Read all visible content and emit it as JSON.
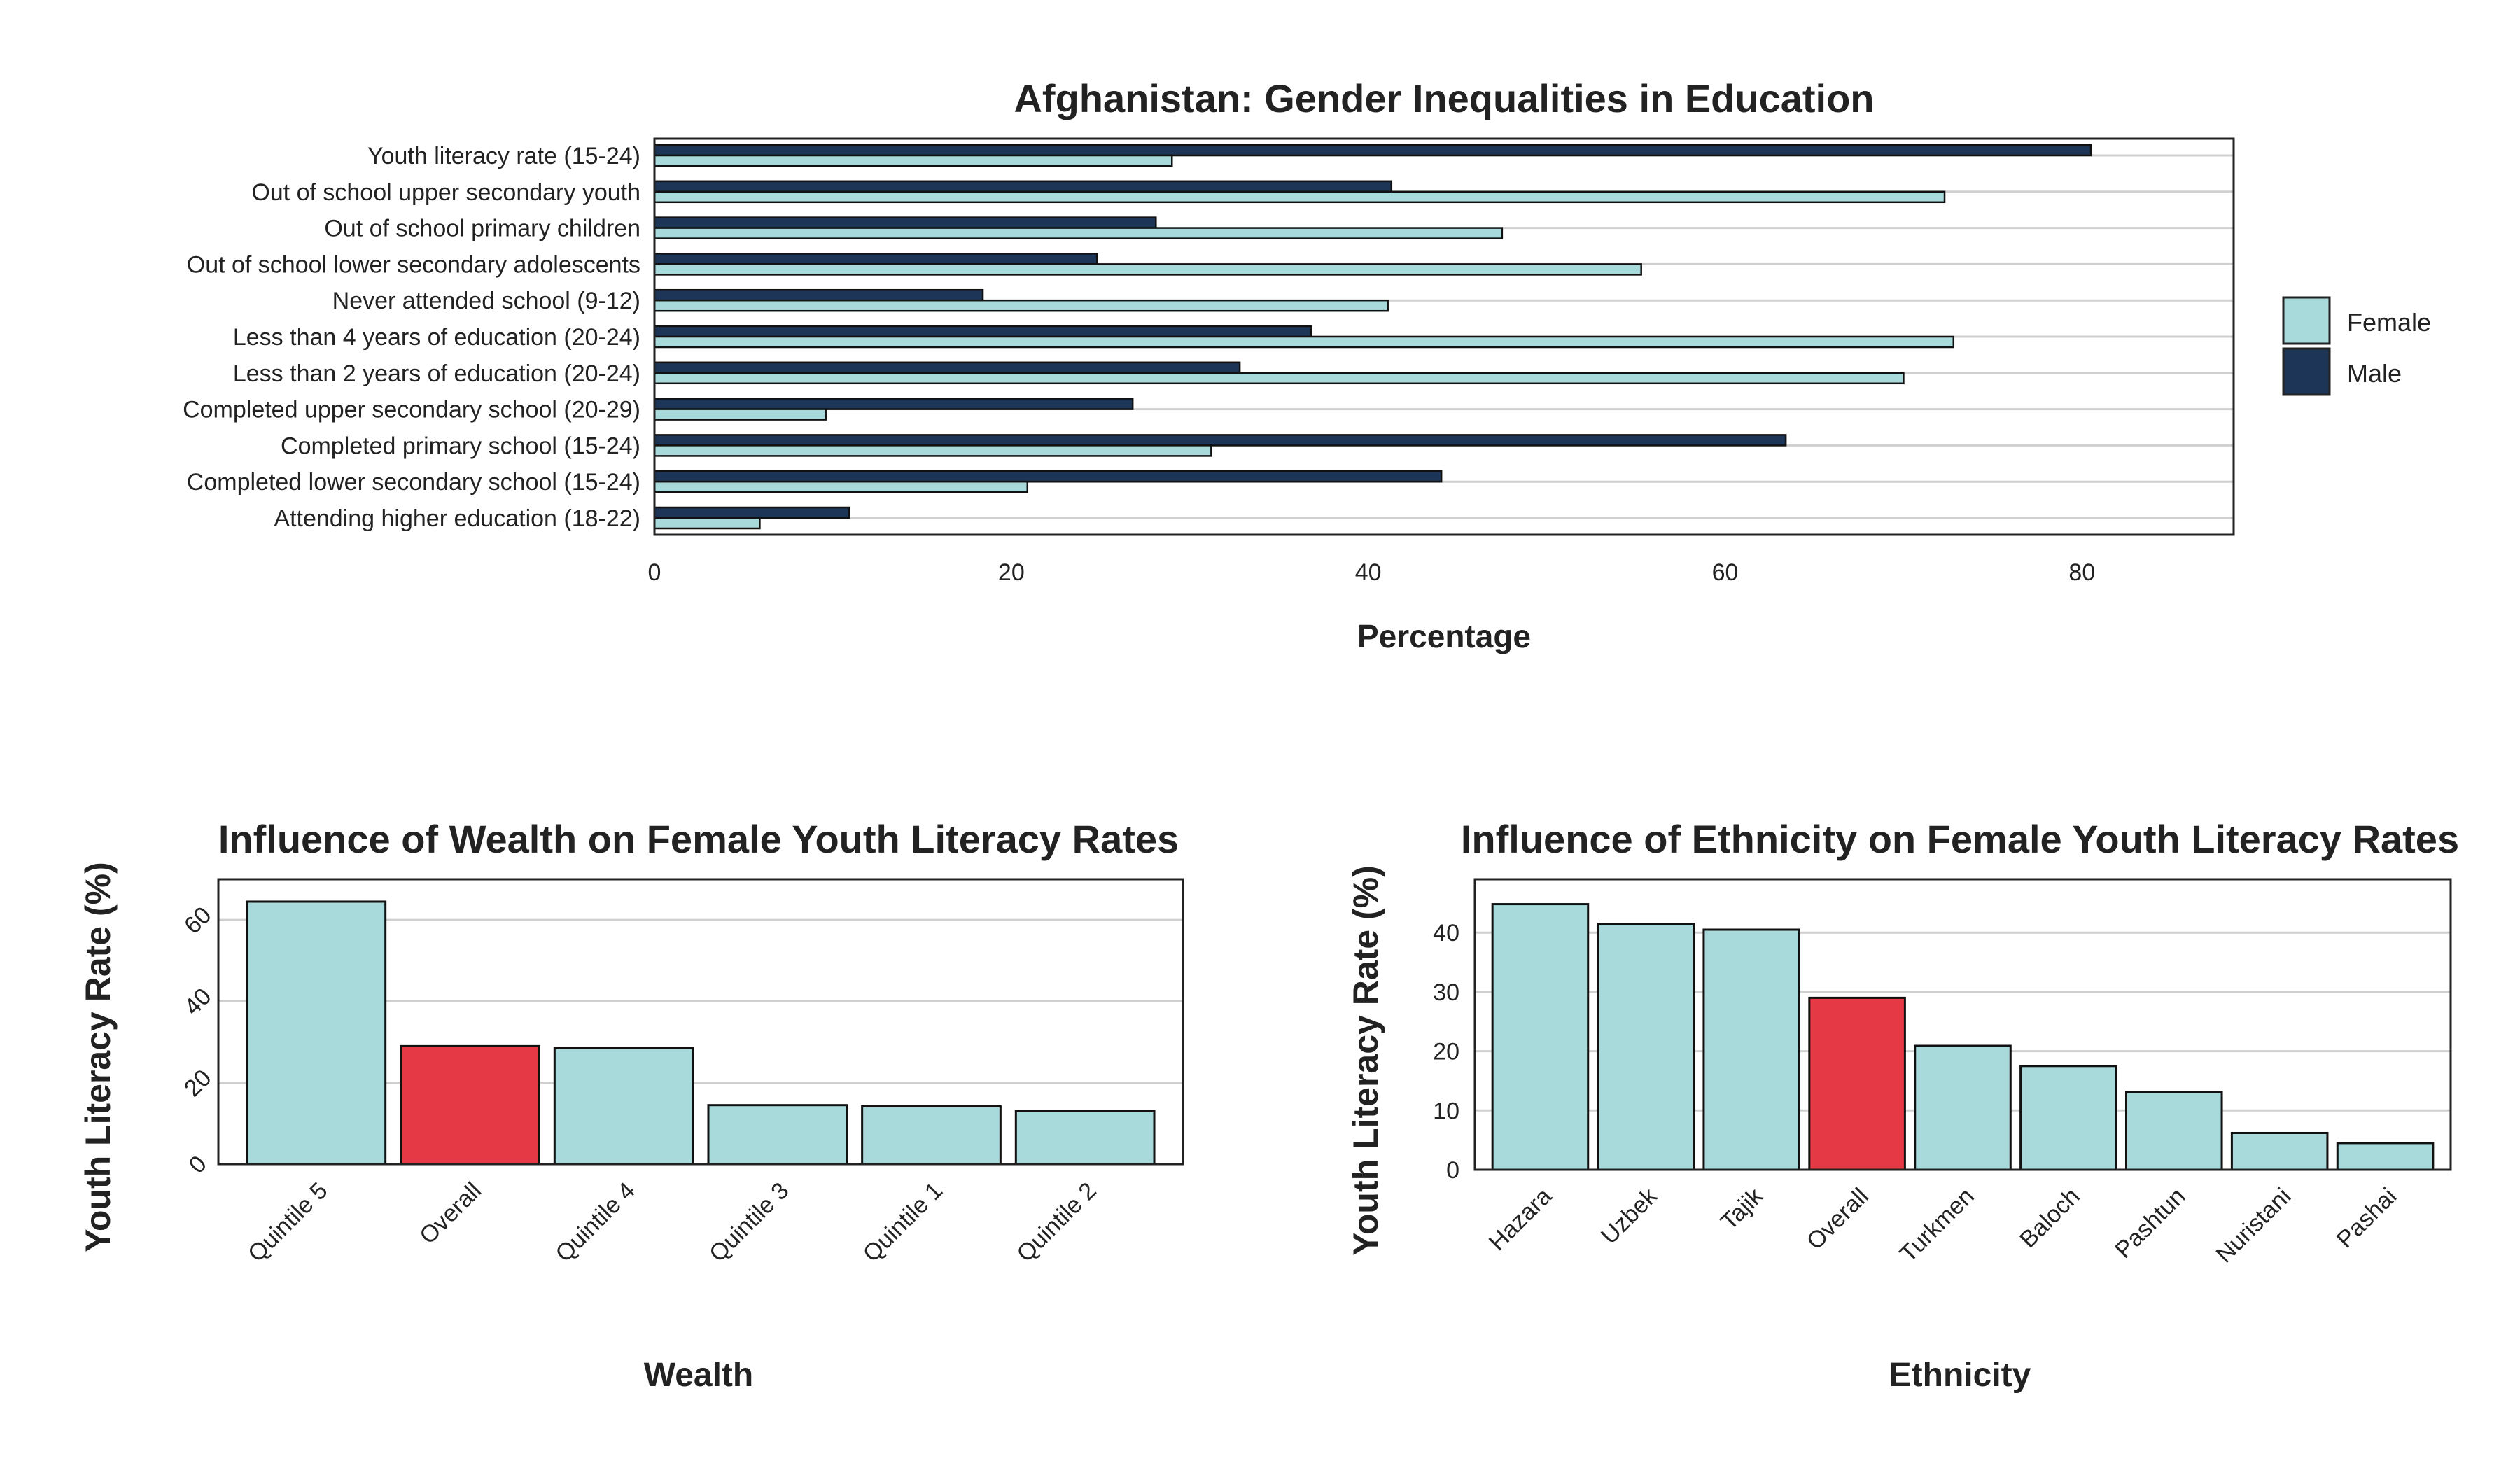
{
  "colors": {
    "female": "#a8dadc",
    "male": "#1d3557",
    "overall": "#e63946",
    "grid": "#cfcfcf",
    "frame": "#222222"
  },
  "chart_data": [
    {
      "type": "bar",
      "orientation": "horizontal",
      "title": "Afghanistan: Gender Inequalities in Education",
      "xlabel": "Percentage",
      "ylabel": "",
      "xlim": [
        0,
        88.5
      ],
      "xticks": [
        0,
        20,
        40,
        60,
        80
      ],
      "grid": "horizontal",
      "legend_position": "right",
      "categories": [
        "Youth literacy rate (15-24)",
        "Out of school upper secondary youth",
        "Out of school primary children",
        "Out of school lower secondary adolescents",
        "Never attended school (9-12)",
        "Less than 4 years of education (20-24)",
        "Less than 2 years of education (20-24)",
        "Completed upper secondary school (20-29)",
        "Completed primary school (15-24)",
        "Completed lower secondary school (15-24)",
        "Attending higher education (18-22)"
      ],
      "series": [
        {
          "name": "Female",
          "color": "#a8dadc",
          "values": [
            29,
            72.3,
            47.5,
            55.3,
            41.1,
            72.8,
            70,
            9.6,
            31.2,
            20.9,
            5.9
          ]
        },
        {
          "name": "Male",
          "color": "#1d3557",
          "values": [
            80.5,
            41.3,
            28.1,
            24.8,
            18.4,
            36.8,
            32.8,
            26.8,
            63.4,
            44.1,
            10.9
          ]
        }
      ]
    },
    {
      "type": "bar",
      "title": "Influence of Wealth on Female Youth Literacy Rates",
      "xlabel": "Wealth",
      "ylabel": "Youth Literacy Rate (%)",
      "ylim": [
        0,
        70
      ],
      "yticks": [
        0,
        20,
        40,
        60
      ],
      "grid": "horizontal",
      "categories": [
        "Quintile 5",
        "Overall",
        "Quintile 4",
        "Quintile 3",
        "Quintile 1",
        "Quintile 2"
      ],
      "values": [
        64.5,
        29,
        28.5,
        14.5,
        14.2,
        13
      ],
      "highlight": "Overall"
    },
    {
      "type": "bar",
      "title": "Influence of Ethnicity on Female Youth Literacy Rates",
      "xlabel": "Ethnicity",
      "ylabel": "Youth Literacy Rate (%)",
      "ylim": [
        0,
        49
      ],
      "yticks": [
        0,
        10,
        20,
        30,
        40
      ],
      "grid": "horizontal",
      "categories": [
        "Hazara",
        "Uzbek",
        "Tajik",
        "Overall",
        "Turkmen",
        "Baloch",
        "Pashtun",
        "Nuristani",
        "Pashai"
      ],
      "values": [
        44.8,
        41.5,
        40.5,
        29,
        20.9,
        17.5,
        13.1,
        6.2,
        4.5
      ],
      "highlight": "Overall"
    }
  ]
}
